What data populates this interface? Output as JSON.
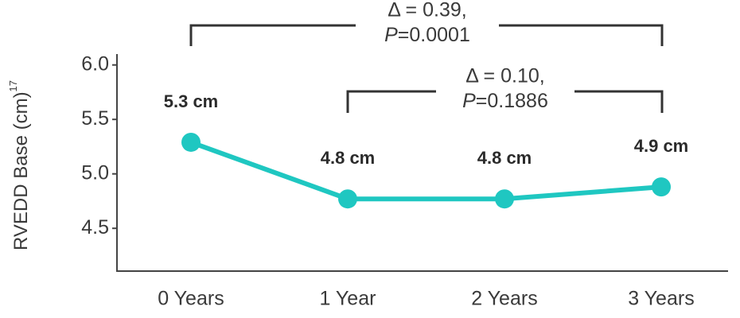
{
  "chart_data": {
    "type": "line",
    "ylabel": "RVEDD Base (cm)",
    "ylabel_superscript": "17",
    "categories": [
      "0 Years",
      "1 Year",
      "2 Years",
      "3 Years"
    ],
    "series": [
      {
        "color": "#1fc7c1",
        "values": [
          5.29,
          4.77,
          4.77,
          4.88
        ],
        "value_labels": [
          "5.3 cm",
          "4.8 cm",
          "4.8 cm",
          "4.9 cm"
        ]
      }
    ],
    "ylim": [
      4.1,
      6.1
    ],
    "yticks": [
      4.5,
      {
        "value": 5,
        "label": "5.0"
      },
      5.5,
      {
        "value": 6,
        "label": "6.0"
      }
    ],
    "annotations": [
      {
        "delta": "Δ = 0.39,",
        "p_symbol": "P",
        "p_value": "=0.0001"
      },
      {
        "delta": "Δ = 0.10,",
        "p_symbol": "P",
        "p_value": "=0.1886"
      }
    ]
  }
}
